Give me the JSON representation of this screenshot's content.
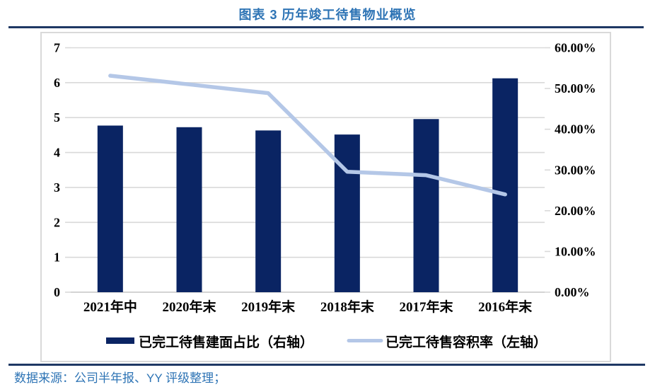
{
  "page": {
    "title": "图表 3 历年竣工待售物业概览",
    "source_note": "数据来源：公司半年报、YY 评级整理；"
  },
  "colors": {
    "rule_navy": "#1F3864",
    "bar_fill": "#0A2463",
    "line_stroke": "#B4C7E7",
    "heading_blue": "#2E74B5",
    "gridline": "#D9D9D9",
    "axis_line": "#C6C6C6",
    "axis_text": "#000000"
  },
  "chart_data": {
    "type": "bar",
    "subtype": "combo-bar-line-dual-axis",
    "title": "图表 3 历年竣工待售物业概览",
    "categories": [
      "2021年中",
      "2020年末",
      "2019年末",
      "2018年末",
      "2017年末",
      "2016年末"
    ],
    "series": [
      {
        "name": "已完工待售建面占比（右轴）",
        "type": "bar",
        "axis": "right",
        "unit": "%",
        "values": [
          40.9,
          40.5,
          39.7,
          38.7,
          42.5,
          52.5
        ]
      },
      {
        "name": "已完工待售容积率（左轴）",
        "type": "line",
        "axis": "left",
        "unit": "",
        "values": [
          6.2,
          5.95,
          5.7,
          3.45,
          3.35,
          2.8
        ]
      }
    ],
    "left_axis": {
      "min": 0,
      "max": 7,
      "step": 1,
      "tick_labels": [
        "7",
        "6",
        "5",
        "4",
        "3",
        "2",
        "1",
        "0"
      ]
    },
    "right_axis": {
      "min": 0,
      "max": 60,
      "step": 10,
      "tick_labels": [
        "60.00%",
        "50.00%",
        "40.00%",
        "30.00%",
        "20.00%",
        "10.00%",
        "0.00%"
      ]
    },
    "grid": true,
    "legend_position": "bottom",
    "xlabel": "",
    "ylabel_left": "",
    "ylabel_right": ""
  }
}
